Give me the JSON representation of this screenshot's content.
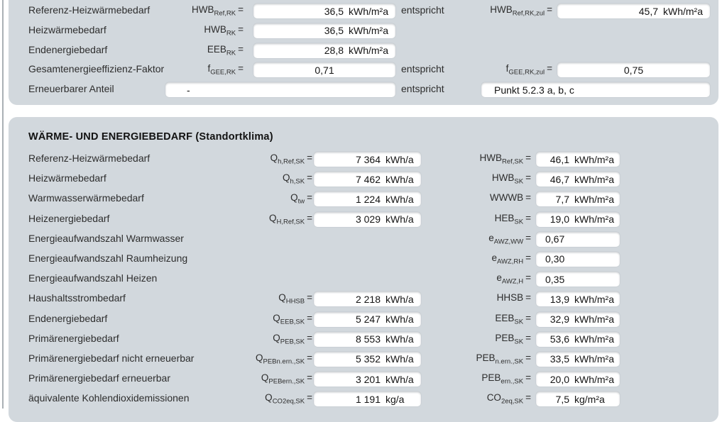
{
  "top_section": {
    "rows": [
      {
        "label": "Referenz-Heizwärmebedarf",
        "sym": "HWB",
        "sub": "Ref,RK",
        "value": "36,5",
        "unit": "kWh/m²a",
        "entspricht": "entspricht",
        "rsym": "HWB",
        "rsub": "Ref,RK,zul",
        "rvalue": "45,7",
        "runit": "kWh/m²a"
      },
      {
        "label": "Heizwärmebedarf",
        "sym": "HWB",
        "sub": "RK",
        "value": "36,5",
        "unit": "kWh/m²a"
      },
      {
        "label": "Endenergiebedarf",
        "sym": "EEB",
        "sub": "RK",
        "value": "28,8",
        "unit": "kWh/m²a"
      },
      {
        "label": "Gesamtenergieeffizienz-Faktor",
        "sym": "f",
        "sub": "GEE,RK",
        "value": "0,71",
        "entspricht": "entspricht",
        "rsym": "f",
        "rsub": "GEE,RK,zul",
        "rvalue": "0,75"
      },
      {
        "label": "Erneuerbarer Anteil",
        "value": "-",
        "entspricht": "entspricht",
        "rbox": "Punkt 5.2.3 a, b, c"
      }
    ]
  },
  "main_section": {
    "title": "WÄRME- UND ENERGIEBEDARF (Standortklima)",
    "rows": [
      {
        "label": "Referenz-Heizwärmebedarf",
        "sym": "Q",
        "sub": "h,Ref,SK",
        "value": "7 364",
        "unit": "kWh/a",
        "rsym": "HWB",
        "rsub": "Ref,SK",
        "rvalue": "46,1",
        "runit": "kWh/m²a"
      },
      {
        "label": "Heizwärmebedarf",
        "sym": "Q",
        "sub": "h,SK",
        "value": "7 462",
        "unit": "kWh/a",
        "rsym": "HWB",
        "rsub": "SK",
        "rvalue": "46,7",
        "runit": "kWh/m²a"
      },
      {
        "label": "Warmwasserwärmebedarf",
        "sym": "Q",
        "sub": "tw",
        "value": "1 224",
        "unit": "kWh/a",
        "rsym": "WWWB",
        "rsub": "",
        "rvalue": "7,7",
        "runit": "kWh/m²a"
      },
      {
        "label": "Heizenergiebedarf",
        "sym": "Q",
        "sub": "H,Ref,SK",
        "value": "3 029",
        "unit": "kWh/a",
        "rsym": "HEB",
        "rsub": "SK",
        "rvalue": "19,0",
        "runit": "kWh/m²a"
      },
      {
        "label": "Energieaufwandszahl Warmwasser",
        "rsym": "e",
        "rsub": "AWZ,WW",
        "rvalue": "0,67",
        "rplain": true
      },
      {
        "label": "Energieaufwandszahl Raumheizung",
        "rsym": "e",
        "rsub": "AWZ,RH",
        "rvalue": "0,30",
        "rplain": true
      },
      {
        "label": "Energieaufwandszahl Heizen",
        "rsym": "e",
        "rsub": "AWZ,H",
        "rvalue": "0,35",
        "rplain": true
      },
      {
        "label": "Haushaltsstrombedarf",
        "sym": "Q",
        "sub": "HHSB",
        "value": "2 218",
        "unit": "kWh/a",
        "rsym": "HHSB",
        "rsub": "",
        "rvalue": "13,9",
        "runit": "kWh/m²a"
      },
      {
        "label": "Endenergiebedarf",
        "sym": "Q",
        "sub": "EEB,SK",
        "value": "5 247",
        "unit": "kWh/a",
        "rsym": "EEB",
        "rsub": "SK",
        "rvalue": "32,9",
        "runit": "kWh/m²a"
      },
      {
        "label": "Primärenergiebedarf",
        "sym": "Q",
        "sub": "PEB,SK",
        "value": "8 553",
        "unit": "kWh/a",
        "rsym": "PEB",
        "rsub": "SK",
        "rvalue": "53,6",
        "runit": "kWh/m²a"
      },
      {
        "label": "Primärenergiebedarf nicht erneuerbar",
        "sym": "Q",
        "sub": "PEBn.ern.,SK",
        "value": "5 352",
        "unit": "kWh/a",
        "rsym": "PEB",
        "rsub": "n.ern.,SK",
        "rvalue": "33,5",
        "runit": "kWh/m²a"
      },
      {
        "label": "Primärenergiebedarf erneuerbar",
        "sym": "Q",
        "sub": "PEBern.,SK",
        "value": "3 201",
        "unit": "kWh/a",
        "rsym": "PEB",
        "rsub": "ern.,SK",
        "rvalue": "20,0",
        "runit": "kWh/m²a"
      },
      {
        "label": "äquivalente Kohlendioxidemissionen",
        "sym": "Q",
        "sub": "CO2eq,SK",
        "value": "1 191",
        "unit": "kg/a",
        "rsym": "CO",
        "rsub": "2eq,SK",
        "rvalue": "7,5",
        "runit": "kg/m²a"
      }
    ]
  }
}
